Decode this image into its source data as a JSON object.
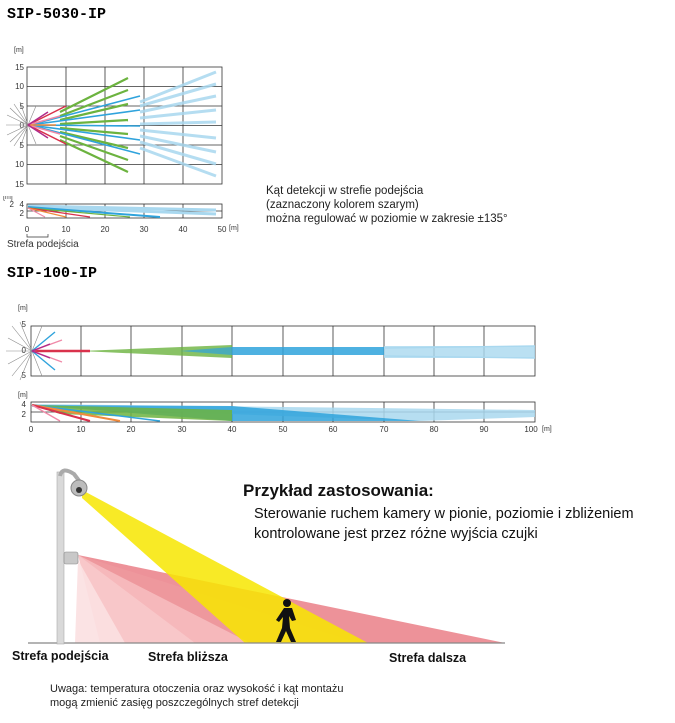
{
  "sip5030": {
    "title": "SIP-5030-IP",
    "unit": "[m]",
    "y_ticks_top": [
      "15",
      "10",
      "5",
      "0",
      "5",
      "10",
      "15"
    ],
    "x_ticks": [
      "0",
      "10",
      "20",
      "30",
      "40",
      "50"
    ],
    "side_ticks": [
      "2",
      "4",
      "2"
    ],
    "approach_label": "Strefa podejścia",
    "note_lines": [
      "Kąt detekcji w strefie podejścia",
      "(zaznaczony kolorem szarym)",
      "można regulować w poziomie w zakresie ±135°"
    ]
  },
  "sip100": {
    "title": "SIP-100-IP",
    "unit": "[m]",
    "y_ticks_top": [
      "5",
      "0",
      "5"
    ],
    "x_ticks": [
      "0",
      "10",
      "20",
      "30",
      "40",
      "50",
      "60",
      "70",
      "80",
      "90",
      "100"
    ],
    "side_ticks": [
      "4",
      "2"
    ]
  },
  "example": {
    "title": "Przykład zastosowania:",
    "desc_lines": [
      "Sterowanie ruchem kamery w pionie, poziomie i zbliżeniem",
      "kontrolowane jest przez różne wyjścia czujki"
    ],
    "zones": [
      "Strefa podejścia",
      "Strefa bliższa",
      "Strefa dalsza"
    ],
    "warning_lines": [
      "Uwaga: temperatura otoczenia oraz wysokość i kąt montażu",
      "mogą zmienić zasięg poszczególnych stref detekcji"
    ]
  },
  "colors": {
    "green": "#6cb33f",
    "blue": "#2fa3dc",
    "light_blue": "#a9d8ef",
    "red": "#d9324c",
    "pink": "#f08aa8",
    "orange": "#f08a3c",
    "yellow": "#f7e600",
    "zone_red": "#e9777f",
    "zone_pink": "#f6b9bc"
  }
}
